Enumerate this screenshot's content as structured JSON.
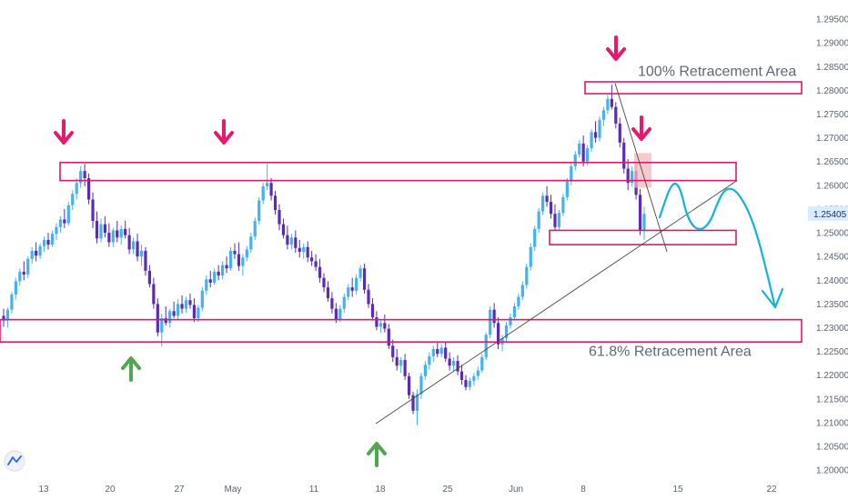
{
  "chart_data": {
    "type": "candlestick",
    "title": "",
    "xlabel": "",
    "ylabel": "",
    "x_ticks": [
      "13",
      "20",
      "27",
      "May",
      "11",
      "18",
      "25",
      "Jun",
      "8",
      "15",
      "22"
    ],
    "y_ticks": [
      1.2,
      1.205,
      1.21,
      1.215,
      1.22,
      1.225,
      1.23,
      1.235,
      1.24,
      1.245,
      1.25,
      1.255,
      1.26,
      1.265,
      1.27,
      1.275,
      1.28,
      1.285,
      1.29,
      1.295
    ],
    "y_tick_labels": [
      "1.20000",
      "1.20500",
      "1.21000",
      "1.21500",
      "1.22000",
      "1.22500",
      "1.23000",
      "1.23500",
      "1.24000",
      "1.24500",
      "1.25000",
      "1.25500",
      "1.26000",
      "1.26500",
      "1.27000",
      "1.27500",
      "1.28000",
      "1.28500",
      "1.29000",
      "1.29500"
    ],
    "ylim": [
      1.1985,
      1.2975
    ],
    "last_price": 1.25405,
    "last_price_label": "1.25405",
    "grid": false,
    "colors": {
      "up": "#41b3f2",
      "down": "#5b2bb5",
      "zone": "#e0176b",
      "arrow_down": "#e8196a",
      "arrow_up": "#4fa84f",
      "projection": "#13b3d8",
      "trendline": "#4a4a4a",
      "highlight": "#f4b8bf",
      "price_label_bg": "#d9ecff"
    },
    "candles": [
      [
        1.2325,
        1.234,
        1.2302,
        1.2315
      ],
      [
        1.2315,
        1.2342,
        1.23,
        1.2338
      ],
      [
        1.2338,
        1.2375,
        1.233,
        1.237
      ],
      [
        1.237,
        1.2405,
        1.236,
        1.2398
      ],
      [
        1.2398,
        1.2425,
        1.2388,
        1.2418
      ],
      [
        1.2418,
        1.244,
        1.24,
        1.2412
      ],
      [
        1.2412,
        1.245,
        1.2405,
        1.2445
      ],
      [
        1.2445,
        1.247,
        1.2435,
        1.2462
      ],
      [
        1.2462,
        1.248,
        1.244,
        1.2452
      ],
      [
        1.2452,
        1.2478,
        1.2445,
        1.2472
      ],
      [
        1.2472,
        1.2492,
        1.246,
        1.2485
      ],
      [
        1.2485,
        1.25,
        1.2465,
        1.2475
      ],
      [
        1.2475,
        1.2505,
        1.247,
        1.2498
      ],
      [
        1.2498,
        1.252,
        1.2485,
        1.2512
      ],
      [
        1.2512,
        1.2535,
        1.25,
        1.2528
      ],
      [
        1.2528,
        1.255,
        1.251,
        1.252
      ],
      [
        1.252,
        1.2565,
        1.2515,
        1.2558
      ],
      [
        1.2558,
        1.259,
        1.2548,
        1.2582
      ],
      [
        1.2582,
        1.2615,
        1.257,
        1.2605
      ],
      [
        1.2605,
        1.264,
        1.2595,
        1.263
      ],
      [
        1.263,
        1.2645,
        1.2598,
        1.2615
      ],
      [
        1.2615,
        1.2625,
        1.256,
        1.257
      ],
      [
        1.257,
        1.2585,
        1.251,
        1.2525
      ],
      [
        1.2525,
        1.2545,
        1.2478,
        1.2488
      ],
      [
        1.2488,
        1.253,
        1.248,
        1.2518
      ],
      [
        1.2518,
        1.2535,
        1.249,
        1.25
      ],
      [
        1.25,
        1.252,
        1.247,
        1.248
      ],
      [
        1.248,
        1.251,
        1.247,
        1.2505
      ],
      [
        1.2505,
        1.2525,
        1.248,
        1.249
      ],
      [
        1.249,
        1.2515,
        1.2475,
        1.2508
      ],
      [
        1.2508,
        1.2525,
        1.2488,
        1.2495
      ],
      [
        1.2495,
        1.251,
        1.2455,
        1.2465
      ],
      [
        1.2465,
        1.249,
        1.2455,
        1.2482
      ],
      [
        1.2482,
        1.2498,
        1.244,
        1.245
      ],
      [
        1.245,
        1.2475,
        1.243,
        1.2462
      ],
      [
        1.2462,
        1.247,
        1.241,
        1.242
      ],
      [
        1.242,
        1.2432,
        1.2385,
        1.2392
      ],
      [
        1.2392,
        1.2405,
        1.234,
        1.235
      ],
      [
        1.235,
        1.2362,
        1.2282,
        1.229
      ],
      [
        1.229,
        1.233,
        1.226,
        1.232
      ],
      [
        1.232,
        1.2345,
        1.2305,
        1.231
      ],
      [
        1.231,
        1.234,
        1.23,
        1.2335
      ],
      [
        1.2335,
        1.2355,
        1.232,
        1.2325
      ],
      [
        1.2325,
        1.236,
        1.2318,
        1.235
      ],
      [
        1.235,
        1.2368,
        1.233,
        1.234
      ],
      [
        1.234,
        1.2365,
        1.2332,
        1.2358
      ],
      [
        1.2358,
        1.2372,
        1.234,
        1.2348
      ],
      [
        1.2348,
        1.2362,
        1.2312,
        1.232
      ],
      [
        1.232,
        1.2348,
        1.2312,
        1.2342
      ],
      [
        1.2342,
        1.2385,
        1.2335,
        1.2378
      ],
      [
        1.2378,
        1.241,
        1.237,
        1.2402
      ],
      [
        1.2402,
        1.242,
        1.2385,
        1.2395
      ],
      [
        1.2395,
        1.2425,
        1.239,
        1.2418
      ],
      [
        1.2418,
        1.2432,
        1.24,
        1.241
      ],
      [
        1.241,
        1.244,
        1.2402,
        1.2432
      ],
      [
        1.2432,
        1.245,
        1.2415,
        1.2425
      ],
      [
        1.2425,
        1.247,
        1.242,
        1.2462
      ],
      [
        1.2462,
        1.2478,
        1.2445,
        1.2455
      ],
      [
        1.2455,
        1.248,
        1.242,
        1.243
      ],
      [
        1.243,
        1.2455,
        1.241,
        1.2448
      ],
      [
        1.2448,
        1.2472,
        1.244,
        1.2465
      ],
      [
        1.2465,
        1.25,
        1.2458,
        1.2492
      ],
      [
        1.2492,
        1.2532,
        1.2485,
        1.2525
      ],
      [
        1.2525,
        1.2575,
        1.2518,
        1.2568
      ],
      [
        1.2568,
        1.2605,
        1.256,
        1.2598
      ],
      [
        1.2598,
        1.2645,
        1.259,
        1.2605
      ],
      [
        1.2605,
        1.2615,
        1.2568,
        1.2578
      ],
      [
        1.2578,
        1.2588,
        1.2538,
        1.2548
      ],
      [
        1.2548,
        1.256,
        1.2505,
        1.2518
      ],
      [
        1.2518,
        1.253,
        1.2488,
        1.2495
      ],
      [
        1.2495,
        1.2515,
        1.2465,
        1.2475
      ],
      [
        1.2475,
        1.2498,
        1.2465,
        1.249
      ],
      [
        1.249,
        1.2505,
        1.2458,
        1.2468
      ],
      [
        1.2468,
        1.2485,
        1.2448,
        1.246
      ],
      [
        1.246,
        1.2478,
        1.2445,
        1.247
      ],
      [
        1.247,
        1.2482,
        1.2438,
        1.2448
      ],
      [
        1.2448,
        1.2462,
        1.243,
        1.244
      ],
      [
        1.244,
        1.2455,
        1.242,
        1.2428
      ],
      [
        1.2428,
        1.2445,
        1.2395,
        1.2405
      ],
      [
        1.2405,
        1.2415,
        1.2375,
        1.2385
      ],
      [
        1.2385,
        1.2398,
        1.2355,
        1.2362
      ],
      [
        1.2362,
        1.2375,
        1.233,
        1.234
      ],
      [
        1.234,
        1.2352,
        1.231,
        1.2318
      ],
      [
        1.2318,
        1.2348,
        1.2312,
        1.234
      ],
      [
        1.234,
        1.2372,
        1.2332,
        1.2365
      ],
      [
        1.2365,
        1.2392,
        1.2358,
        1.2385
      ],
      [
        1.2385,
        1.2405,
        1.2365,
        1.2378
      ],
      [
        1.2378,
        1.2412,
        1.237,
        1.2405
      ],
      [
        1.2405,
        1.2432,
        1.2398,
        1.2425
      ],
      [
        1.2425,
        1.2435,
        1.2372,
        1.238
      ],
      [
        1.238,
        1.2392,
        1.2342,
        1.235
      ],
      [
        1.235,
        1.2362,
        1.2315,
        1.2322
      ],
      [
        1.2322,
        1.2335,
        1.2295,
        1.2302
      ],
      [
        1.2302,
        1.2318,
        1.229,
        1.231
      ],
      [
        1.231,
        1.2328,
        1.229,
        1.2298
      ],
      [
        1.2298,
        1.2308,
        1.2255,
        1.2262
      ],
      [
        1.2262,
        1.2275,
        1.2228,
        1.2238
      ],
      [
        1.2238,
        1.2255,
        1.221,
        1.222
      ],
      [
        1.222,
        1.2238,
        1.2205,
        1.2232
      ],
      [
        1.2232,
        1.2245,
        1.219,
        1.2198
      ],
      [
        1.2198,
        1.2205,
        1.215,
        1.2158
      ],
      [
        1.2158,
        1.2165,
        1.2118,
        1.2125
      ],
      [
        1.2125,
        1.217,
        1.2095,
        1.216
      ],
      [
        1.216,
        1.2205,
        1.215,
        1.2198
      ],
      [
        1.2198,
        1.223,
        1.219,
        1.2222
      ],
      [
        1.2222,
        1.2248,
        1.2212,
        1.224
      ],
      [
        1.224,
        1.2262,
        1.2228,
        1.2255
      ],
      [
        1.2255,
        1.2268,
        1.2238,
        1.2245
      ],
      [
        1.2245,
        1.2265,
        1.2238,
        1.2258
      ],
      [
        1.2258,
        1.227,
        1.2228,
        1.2235
      ],
      [
        1.2235,
        1.2248,
        1.221,
        1.222
      ],
      [
        1.222,
        1.2238,
        1.2208,
        1.223
      ],
      [
        1.223,
        1.2242,
        1.22,
        1.2208
      ],
      [
        1.2208,
        1.2222,
        1.218,
        1.219
      ],
      [
        1.219,
        1.22,
        1.2168,
        1.2175
      ],
      [
        1.2175,
        1.2195,
        1.2168,
        1.2188
      ],
      [
        1.2188,
        1.2205,
        1.2178,
        1.2198
      ],
      [
        1.2198,
        1.2218,
        1.219,
        1.221
      ],
      [
        1.221,
        1.2245,
        1.2205,
        1.2238
      ],
      [
        1.2238,
        1.229,
        1.2232,
        1.2285
      ],
      [
        1.2285,
        1.2345,
        1.2278,
        1.2338
      ],
      [
        1.2338,
        1.2352,
        1.23,
        1.231
      ],
      [
        1.231,
        1.2322,
        1.2255,
        1.2265
      ],
      [
        1.2265,
        1.2285,
        1.225,
        1.2278
      ],
      [
        1.2278,
        1.2312,
        1.227,
        1.2305
      ],
      [
        1.2305,
        1.233,
        1.2298,
        1.2322
      ],
      [
        1.2322,
        1.2352,
        1.2315,
        1.2345
      ],
      [
        1.2345,
        1.2372,
        1.2338,
        1.2365
      ],
      [
        1.2365,
        1.2398,
        1.2358,
        1.239
      ],
      [
        1.239,
        1.2435,
        1.2382,
        1.2428
      ],
      [
        1.2428,
        1.2478,
        1.242,
        1.247
      ],
      [
        1.247,
        1.2515,
        1.2462,
        1.2508
      ],
      [
        1.2508,
        1.2552,
        1.25,
        1.2545
      ],
      [
        1.2545,
        1.2585,
        1.2538,
        1.2578
      ],
      [
        1.2578,
        1.2598,
        1.2555,
        1.2565
      ],
      [
        1.2565,
        1.258,
        1.253,
        1.254
      ],
      [
        1.254,
        1.256,
        1.2505,
        1.2512
      ],
      [
        1.2512,
        1.2548,
        1.2505,
        1.2542
      ],
      [
        1.2542,
        1.2582,
        1.2535,
        1.2575
      ],
      [
        1.2575,
        1.2615,
        1.2568,
        1.2608
      ],
      [
        1.2608,
        1.2648,
        1.26,
        1.264
      ],
      [
        1.264,
        1.2672,
        1.2632,
        1.2665
      ],
      [
        1.2665,
        1.2695,
        1.2658,
        1.2688
      ],
      [
        1.2688,
        1.2705,
        1.264,
        1.265
      ],
      [
        1.265,
        1.2685,
        1.2642,
        1.2678
      ],
      [
        1.2678,
        1.2718,
        1.267,
        1.2712
      ],
      [
        1.2712,
        1.2735,
        1.269,
        1.27
      ],
      [
        1.27,
        1.2745,
        1.2692,
        1.2738
      ],
      [
        1.2738,
        1.2765,
        1.2725,
        1.2758
      ],
      [
        1.2758,
        1.279,
        1.275,
        1.2782
      ],
      [
        1.2782,
        1.2812,
        1.276,
        1.2765
      ],
      [
        1.2765,
        1.2775,
        1.272,
        1.273
      ],
      [
        1.273,
        1.2742,
        1.268,
        1.269
      ],
      [
        1.269,
        1.27,
        1.2625,
        1.2635
      ],
      [
        1.2635,
        1.2655,
        1.259,
        1.2605
      ],
      [
        1.2605,
        1.264,
        1.2598,
        1.263
      ],
      [
        1.263,
        1.2645,
        1.257,
        1.258
      ],
      [
        1.258,
        1.2592,
        1.2495,
        1.2505
      ],
      [
        1.2505,
        1.2555,
        1.2485,
        1.254
      ]
    ],
    "zones": [
      {
        "top": 1.2818,
        "bottom": 1.2793
      },
      {
        "top": 1.2648,
        "bottom": 1.261
      },
      {
        "top": 1.2505,
        "bottom": 1.2475
      },
      {
        "top": 1.2317,
        "bottom": 1.227
      }
    ],
    "annotations": [
      {
        "text": "100% Retracement Area",
        "price": 1.2842
      },
      {
        "text": "61.8% Retracement Area",
        "price": 1.2252
      }
    ]
  }
}
